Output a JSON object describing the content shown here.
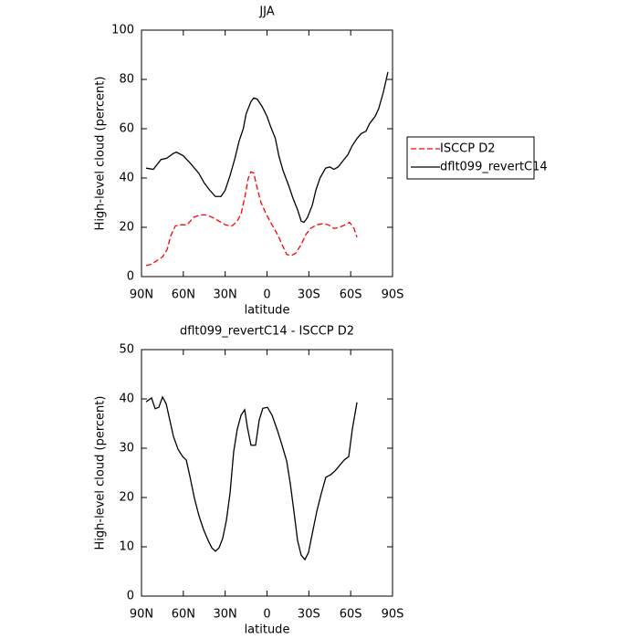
{
  "chart_data": [
    {
      "type": "line",
      "title": "JJA",
      "xlabel": "latitude",
      "ylabel": "High-level cloud (percent)",
      "xlim": [
        90,
        -90
      ],
      "ylim": [
        0,
        100
      ],
      "xticks": [
        {
          "value": 90,
          "label": "90N"
        },
        {
          "value": 60,
          "label": "60N"
        },
        {
          "value": 30,
          "label": "30N"
        },
        0,
        {
          "value": -30,
          "label": "30S"
        },
        {
          "value": -60,
          "label": "60S"
        },
        {
          "value": -90,
          "label": "90S"
        }
      ],
      "yticks": [
        0,
        20,
        40,
        60,
        80,
        100
      ],
      "legend": "right",
      "series": [
        {
          "name": "ISCCP D2",
          "color": "#ff0000",
          "dashed": true,
          "x": [
            86.7,
            82.8,
            78.9,
            74.9,
            71.6,
            69.1,
            65.8,
            62.5,
            57.3,
            52.7,
            48.1,
            43.5,
            39,
            34.4,
            29.8,
            25.2,
            21.3,
            18.6,
            16,
            13.4,
            11.5,
            9.5,
            7.5,
            4.3,
            0.3,
            -3.6,
            -7.6,
            -10.8,
            -14.1,
            -17.4,
            -20.6,
            -24.5,
            -27.8,
            -31.1,
            -35.6,
            -40.2,
            -44.1,
            -48.1,
            -52,
            -55.9,
            -59.2,
            -62.4,
            -64.5
          ],
          "values": [
            4.5,
            5,
            6.5,
            8,
            11,
            16.5,
            20.5,
            21,
            21,
            24,
            25,
            25,
            24,
            22.5,
            21,
            20.5,
            22.5,
            25.5,
            32,
            40,
            42.5,
            42,
            37,
            30,
            25,
            21,
            17,
            13,
            9,
            8.5,
            9.5,
            13,
            17,
            19.5,
            21,
            21.5,
            21,
            19.5,
            20,
            21,
            22,
            19.5,
            16
          ]
        },
        {
          "name": "dflt099_revertC14",
          "color": "#000000",
          "dashed": false,
          "x": [
            86.7,
            81.5,
            76,
            72,
            67,
            65,
            60,
            55,
            49,
            45,
            41,
            37,
            33,
            30,
            26.5,
            23,
            20,
            17,
            15,
            11.5,
            9.5,
            7,
            3.5,
            0,
            -2.5,
            -6,
            -8.5,
            -11.5,
            -15.5,
            -18.5,
            -22,
            -24.5,
            -26.5,
            -29,
            -32.5,
            -35,
            -38,
            -42,
            -45,
            -48,
            -51,
            -54.5,
            -58,
            -61,
            -64.5,
            -67.5,
            -71,
            -73.5,
            -77.5,
            -80,
            -83.5,
            -86.7
          ],
          "values": [
            44,
            43.5,
            47.5,
            48,
            50,
            50.5,
            49,
            46,
            42,
            38,
            35,
            32.5,
            32.5,
            35,
            41,
            48,
            55,
            60,
            66,
            71,
            72.5,
            72,
            69,
            65,
            61,
            56,
            49,
            43,
            37,
            32,
            27,
            22.5,
            22,
            24,
            29,
            35,
            40,
            44,
            44.5,
            43.5,
            44.5,
            47,
            49.5,
            53,
            56,
            58,
            59,
            62,
            65,
            68,
            75,
            83
          ]
        }
      ]
    },
    {
      "type": "line",
      "title": "dflt099_revertC14 - ISCCP D2",
      "xlabel": "latitude",
      "ylabel": "High-level cloud (percent)",
      "xlim": [
        90,
        -90
      ],
      "ylim": [
        0,
        50
      ],
      "xticks": [
        {
          "value": 90,
          "label": "90N"
        },
        {
          "value": 60,
          "label": "60N"
        },
        {
          "value": 30,
          "label": "30N"
        },
        0,
        {
          "value": -30,
          "label": "30S"
        },
        {
          "value": -60,
          "label": "60S"
        },
        {
          "value": -90,
          "label": "90S"
        }
      ],
      "yticks": [
        0,
        10,
        20,
        30,
        40,
        50
      ],
      "series": [
        {
          "color": "#000000",
          "dashed": false,
          "x": [
            86.7,
            82.8,
            80.2,
            77.6,
            74.9,
            72.3,
            69.7,
            67.1,
            63.8,
            60.5,
            57.9,
            55.3,
            52,
            48.8,
            45.5,
            42.2,
            39.6,
            37,
            34.4,
            31.8,
            29.1,
            26.5,
            23.9,
            21.3,
            18.6,
            16,
            14.1,
            11.5,
            8.2,
            5.6,
            3,
            -0.3,
            -3.6,
            -7.6,
            -10.8,
            -14.1,
            -16.7,
            -19.3,
            -21.9,
            -24.5,
            -27.2,
            -29.8,
            -32.4,
            -35.7,
            -39,
            -42.2,
            -45.5,
            -48.8,
            -52,
            -55.3,
            -58.6,
            -61.2,
            -64.5
          ],
          "values": [
            39.4,
            40.2,
            38,
            38.3,
            40.4,
            39,
            35.7,
            32.4,
            29.8,
            28.3,
            27.6,
            24.3,
            19.8,
            16.3,
            13.5,
            11.3,
            9.8,
            9.1,
            9.8,
            11.7,
            15.4,
            20.9,
            29.3,
            33.9,
            36.7,
            37.8,
            34.3,
            30.6,
            30.6,
            35.7,
            38.1,
            38.3,
            36.7,
            33.5,
            30.6,
            27.4,
            22.8,
            17.2,
            11.3,
            8.3,
            7.4,
            8.9,
            12.6,
            17.2,
            20.9,
            24.1,
            24.6,
            25.4,
            26.5,
            27.6,
            28.3,
            33.9,
            39.3
          ]
        }
      ]
    }
  ]
}
